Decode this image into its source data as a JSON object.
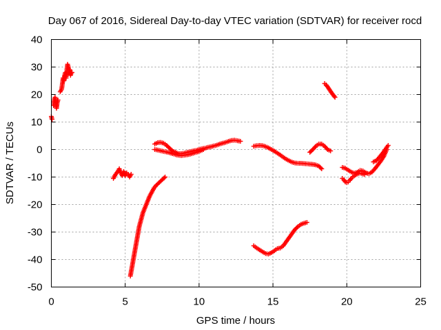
{
  "chart_data": {
    "type": "scatter",
    "title": "Day 067 of 2016, Sidereal Day-to-day VTEC variation (SDTVAR) for receiver rocd",
    "xlabel": "GPS time / hours",
    "ylabel": "SDTVAR / TECUs",
    "xlim": [
      0,
      25
    ],
    "ylim": [
      -50,
      40
    ],
    "xticks": [
      "0",
      "5",
      "10",
      "15",
      "20",
      "25"
    ],
    "yticks": [
      "40",
      "30",
      "20",
      "10",
      "0",
      "-10",
      "-20",
      "-30",
      "-40",
      "-50"
    ],
    "grid": true,
    "marker": "+",
    "color": "#ff0000",
    "series": [
      {
        "x": [
          0.0,
          0.05
        ],
        "y": [
          12,
          11
        ]
      },
      {
        "x": [
          0.15,
          0.2,
          0.25,
          0.3,
          0.35,
          0.4,
          0.45
        ],
        "y": [
          16,
          18,
          19,
          17,
          15,
          17,
          18
        ]
      },
      {
        "x": [
          0.6,
          0.7,
          0.75,
          0.8,
          0.85,
          0.9,
          0.95,
          1.0,
          1.05,
          1.1,
          1.15,
          1.2,
          1.25,
          1.3,
          1.35,
          1.4
        ],
        "y": [
          21,
          22,
          24,
          26,
          25,
          27,
          28,
          26,
          29,
          31,
          30,
          28,
          29,
          27,
          28,
          28
        ]
      },
      {
        "x": [
          4.2,
          4.35,
          4.5,
          4.6,
          4.7,
          4.8,
          4.9,
          5.0,
          5.1,
          5.2,
          5.3,
          5.4
        ],
        "y": [
          -10.5,
          -9,
          -8,
          -7,
          -8.5,
          -9.5,
          -8,
          -9.5,
          -8.5,
          -9,
          -10,
          -9
        ]
      },
      {
        "x": [
          5.35,
          5.45,
          5.55,
          5.65,
          5.75,
          5.85,
          5.95,
          6.05,
          6.2,
          6.35,
          6.5,
          6.65,
          6.8,
          6.95,
          7.1,
          7.3,
          7.5,
          7.7
        ],
        "y": [
          -46,
          -43,
          -40,
          -37,
          -34,
          -31,
          -28,
          -26,
          -23,
          -21,
          -19,
          -17,
          -15.5,
          -14,
          -13,
          -12,
          -11,
          -10
        ]
      },
      {
        "x": [
          7.0,
          7.2,
          7.4,
          7.6,
          7.8,
          8.0,
          8.2,
          8.4,
          8.6,
          8.8,
          9.0,
          9.2,
          9.4,
          9.6,
          9.8,
          10.0,
          10.2,
          10.4,
          10.6,
          10.8,
          11.0,
          11.2,
          11.4,
          11.6,
          11.8,
          12.0,
          12.2,
          12.4,
          12.6,
          12.8
        ],
        "y": [
          2,
          2.5,
          2.6,
          2.3,
          1.5,
          0.5,
          -0.5,
          -1,
          -1.5,
          -1.5,
          -1.3,
          -1,
          -0.8,
          -0.5,
          -0.3,
          0,
          0.3,
          0.5,
          0.8,
          1,
          1.3,
          1.6,
          2,
          2.3,
          2.6,
          3,
          3.3,
          3.4,
          3.2,
          3.0
        ]
      },
      {
        "x": [
          7.0,
          7.3,
          7.6,
          7.9,
          8.2,
          8.5,
          8.8,
          9.1,
          9.4,
          9.7,
          10.0,
          10.3
        ],
        "y": [
          0,
          -0.3,
          -0.7,
          -1,
          -1.5,
          -2,
          -2.2,
          -2,
          -1.7,
          -1.2,
          -0.7,
          0
        ]
      },
      {
        "x": [
          13.7,
          13.9,
          14.1,
          14.3,
          14.5,
          14.7,
          14.9,
          15.1,
          15.3,
          15.5,
          15.7,
          15.9,
          16.1,
          16.3,
          16.5,
          16.7,
          16.9,
          17.1,
          17.3,
          17.5,
          17.7,
          17.9,
          18.1,
          18.3
        ],
        "y": [
          1.2,
          1.4,
          1.5,
          1.4,
          1.1,
          0.6,
          0,
          -0.6,
          -1.3,
          -2,
          -2.8,
          -3.5,
          -4.1,
          -4.6,
          -4.9,
          -5.0,
          -5.0,
          -5.1,
          -5.2,
          -5.3,
          -5.4,
          -5.6,
          -6.0,
          -7.0
        ]
      },
      {
        "x": [
          13.7,
          13.9,
          14.1,
          14.3,
          14.5,
          14.7,
          14.9,
          15.1,
          15.3,
          15.5,
          15.7,
          15.9,
          16.1,
          16.3,
          16.5,
          16.7,
          16.9,
          17.1,
          17.3
        ],
        "y": [
          -35,
          -35.8,
          -36.5,
          -37.2,
          -37.8,
          -38,
          -37.5,
          -36.8,
          -36,
          -35.8,
          -35,
          -33.5,
          -32,
          -30.5,
          -29,
          -28,
          -27.2,
          -26.8,
          -26.5
        ]
      },
      {
        "x": [
          17.5,
          17.7,
          17.9,
          18.1,
          18.3,
          18.5,
          18.7,
          18.9
        ],
        "y": [
          -1,
          0,
          1.2,
          2,
          2,
          1.2,
          0,
          -0.5
        ]
      },
      {
        "x": [
          18.5,
          18.6,
          18.7,
          18.8,
          18.9,
          19.0,
          19.1,
          19.2
        ],
        "y": [
          24,
          23.5,
          22.8,
          22,
          21.2,
          20.4,
          19.7,
          19
        ]
      },
      {
        "x": [
          19.7,
          19.9,
          20.1,
          20.3,
          20.5,
          20.7,
          20.9,
          21.1,
          21.3,
          21.5,
          21.7,
          21.9,
          22.1,
          22.3,
          22.5,
          22.7
        ],
        "y": [
          -6.5,
          -6.8,
          -7.5,
          -8.2,
          -8.6,
          -8.3,
          -7.6,
          -7.8,
          -8.5,
          -8.8,
          -8.2,
          -7,
          -5.6,
          -4.2,
          -2.5,
          0
        ]
      },
      {
        "x": [
          19.7,
          19.8,
          19.9,
          20.0,
          20.1,
          20.2,
          20.3,
          20.4,
          20.5,
          20.6,
          20.7,
          20.8,
          20.9,
          21.0,
          21.1,
          21.2
        ],
        "y": [
          -10.5,
          -11,
          -11.8,
          -12,
          -11.8,
          -11.2,
          -10.5,
          -10,
          -9.6,
          -9.2,
          -8.9,
          -8.7,
          -8.6,
          -8.7,
          -8.9,
          -9.1
        ]
      },
      {
        "x": [
          21.8,
          22.0,
          22.2,
          22.4,
          22.6,
          22.8
        ],
        "y": [
          -4.5,
          -4,
          -2.8,
          -1.5,
          0,
          1.5
        ]
      }
    ]
  }
}
